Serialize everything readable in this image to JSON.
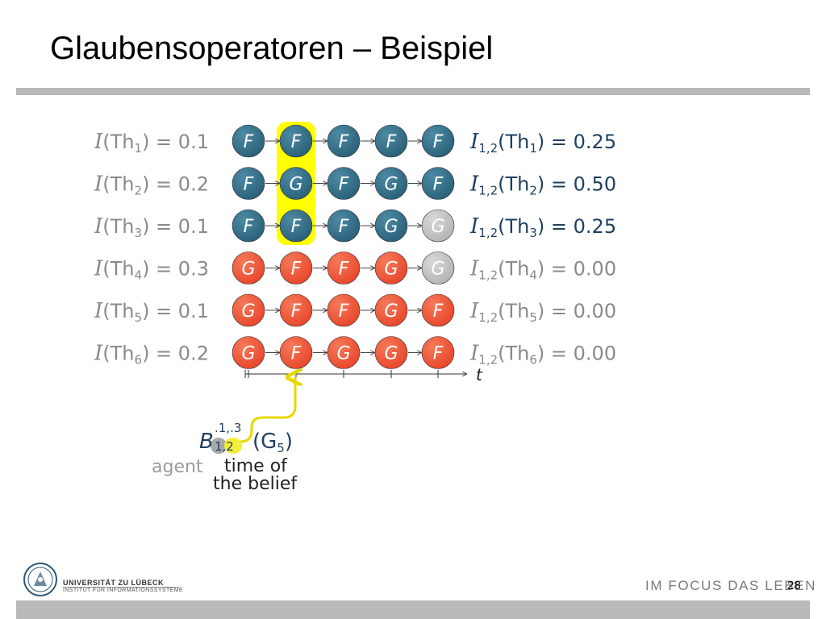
{
  "title": "Glaubensoperatoren – Beispiel",
  "colors": {
    "fact_red": "#e8452a",
    "belief_blue": "#2a6078",
    "gray_node": "#b4b4b4",
    "highlight_yellow": "#ffff00",
    "agent_label_gray": "#9a9a9a",
    "text_blue": "#1f3f5f",
    "text_gray": "#8a8a8a"
  },
  "rows": [
    {
      "left": {
        "pre": "(Th",
        "sub": "1",
        "post": ") = 0.1"
      },
      "nodes": [
        {
          "l": "F",
          "c": "blue"
        },
        {
          "l": "F",
          "c": "blue"
        },
        {
          "l": "F",
          "c": "blue"
        },
        {
          "l": "F",
          "c": "blue"
        },
        {
          "l": "F",
          "c": "blue"
        }
      ],
      "right": {
        "sub": "1,2",
        "pre": "(Th",
        "thsub": "1",
        "post": ") = 0.25",
        "active": true
      }
    },
    {
      "left": {
        "pre": "(Th",
        "sub": "2",
        "post": ") = 0.2"
      },
      "nodes": [
        {
          "l": "F",
          "c": "blue"
        },
        {
          "l": "G",
          "c": "blue"
        },
        {
          "l": "F",
          "c": "blue"
        },
        {
          "l": "G",
          "c": "blue"
        },
        {
          "l": "F",
          "c": "blue"
        }
      ],
      "right": {
        "sub": "1,2",
        "pre": "(Th",
        "thsub": "2",
        "post": ") = 0.50",
        "active": true
      }
    },
    {
      "left": {
        "pre": "(Th",
        "sub": "3",
        "post": ") = 0.1"
      },
      "nodes": [
        {
          "l": "F",
          "c": "blue"
        },
        {
          "l": "F",
          "c": "blue"
        },
        {
          "l": "F",
          "c": "blue"
        },
        {
          "l": "G",
          "c": "blue"
        },
        {
          "l": "G",
          "c": "gray"
        }
      ],
      "right": {
        "sub": "1,2",
        "pre": "(Th",
        "thsub": "3",
        "post": ") = 0.25",
        "active": true
      }
    },
    {
      "left": {
        "pre": "(Th",
        "sub": "4",
        "post": ") = 0.3"
      },
      "nodes": [
        {
          "l": "G",
          "c": "red"
        },
        {
          "l": "F",
          "c": "red"
        },
        {
          "l": "F",
          "c": "red"
        },
        {
          "l": "G",
          "c": "red"
        },
        {
          "l": "G",
          "c": "gray"
        }
      ],
      "right": {
        "sub": "1,2",
        "pre": "(Th",
        "thsub": "4",
        "post": ") = 0.00",
        "active": false
      }
    },
    {
      "left": {
        "pre": "(Th",
        "sub": "5",
        "post": ") = 0.1"
      },
      "nodes": [
        {
          "l": "G",
          "c": "red"
        },
        {
          "l": "F",
          "c": "red"
        },
        {
          "l": "F",
          "c": "red"
        },
        {
          "l": "G",
          "c": "red"
        },
        {
          "l": "F",
          "c": "red"
        }
      ],
      "right": {
        "sub": "1,2",
        "pre": "(Th",
        "thsub": "5",
        "post": ") = 0.00",
        "active": false
      }
    },
    {
      "left": {
        "pre": "(Th",
        "sub": "6",
        "post": ") = 0.2"
      },
      "nodes": [
        {
          "l": "G",
          "c": "red"
        },
        {
          "l": "F",
          "c": "red"
        },
        {
          "l": "G",
          "c": "red"
        },
        {
          "l": "G",
          "c": "red"
        },
        {
          "l": "F",
          "c": "red"
        }
      ],
      "right": {
        "sub": "1,2",
        "pre": "(Th",
        "thsub": "6",
        "post": ") = 0.00",
        "active": false
      }
    }
  ],
  "interp_symbol": "I",
  "time_axis_label": "t",
  "belief": {
    "symbol": "B",
    "superscript": ".1,.3",
    "subscript": "1,2",
    "argument": "(G",
    "argument_sub": "5",
    "argument_close": ")",
    "agent_label": "agent",
    "time_label_line1": "time of",
    "time_label_line2": "the belief"
  },
  "footer": {
    "university": "UNIVERSITÄT ZU LÜBECK",
    "institute": "INSTITUT FÜR INFORMATIONSSYSTEME",
    "motto": "IM FOCUS DAS LEBEN",
    "page_number": "28"
  }
}
